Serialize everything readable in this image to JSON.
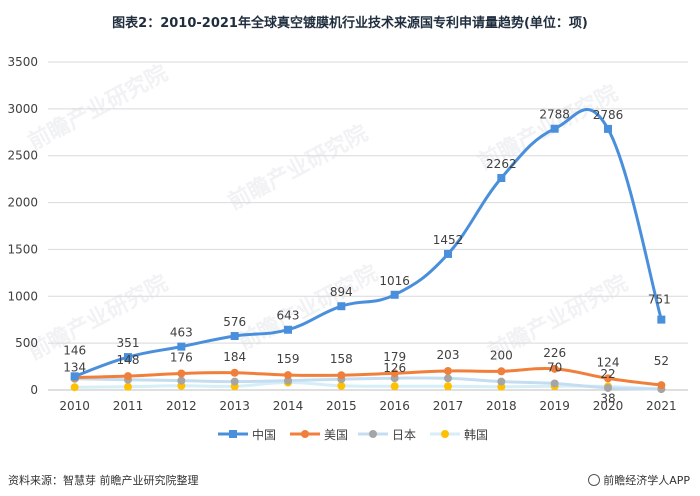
{
  "title": "图表2：2010-2021年全球真空镀膜机行业技术来源国专利申请量趋势(单位：项)",
  "source": "资料来源：智慧芽 前瞻产业研究院整理",
  "brand": "前瞻经济学人APP",
  "watermark": "前瞻产业研究院",
  "colors": {
    "china": "#4a8fdc",
    "usa": "#f07f3c",
    "japan": "#a5a5a5",
    "korea": "#ffc000",
    "grid": "#d9d9d9"
  },
  "chart_data": {
    "type": "line",
    "title": "2010-2021年全球真空镀膜机行业技术来源国专利申请量趋势(单位：项)",
    "categories": [
      "2010",
      "2011",
      "2012",
      "2013",
      "2014",
      "2015",
      "2016",
      "2017",
      "2018",
      "2019",
      "2020",
      "2021"
    ],
    "ylim": [
      0,
      3500
    ],
    "yticks": [
      0,
      500,
      1000,
      1500,
      2000,
      2500,
      3000,
      3500
    ],
    "legend_position": "bottom",
    "series": [
      {
        "name": "中国",
        "values": [
          146,
          351,
          463,
          576,
          643,
          894,
          1016,
          1452,
          2262,
          2788,
          2786,
          751
        ]
      },
      {
        "name": "美国",
        "values": [
          134,
          148,
          176,
          184,
          159,
          158,
          179,
          203,
          200,
          226,
          124,
          52
        ]
      },
      {
        "name": "日本",
        "values": [
          120,
          110,
          100,
          90,
          100,
          115,
          126,
          125,
          90,
          70,
          22,
          10
        ]
      },
      {
        "name": "韩国",
        "values": [
          30,
          35,
          45,
          40,
          80,
          45,
          40,
          40,
          35,
          40,
          38,
          10
        ]
      }
    ],
    "data_labels": {
      "中国": [
        "146",
        "351",
        "463",
        "576",
        "643",
        "894",
        "1016",
        "1452",
        "2262",
        "2788",
        "2786",
        "751"
      ],
      "美国": [
        "134",
        "148",
        "176",
        "184",
        "159",
        "158",
        "179",
        "203",
        "200",
        "226",
        "124",
        "52"
      ],
      "日本": [
        "",
        "",
        "",
        "",
        "",
        "",
        "126",
        "",
        "",
        "70",
        "22",
        ""
      ],
      "韩国": [
        "",
        "",
        "",
        "",
        "",
        "",
        "",
        "",
        "",
        "",
        "38",
        ""
      ]
    }
  }
}
